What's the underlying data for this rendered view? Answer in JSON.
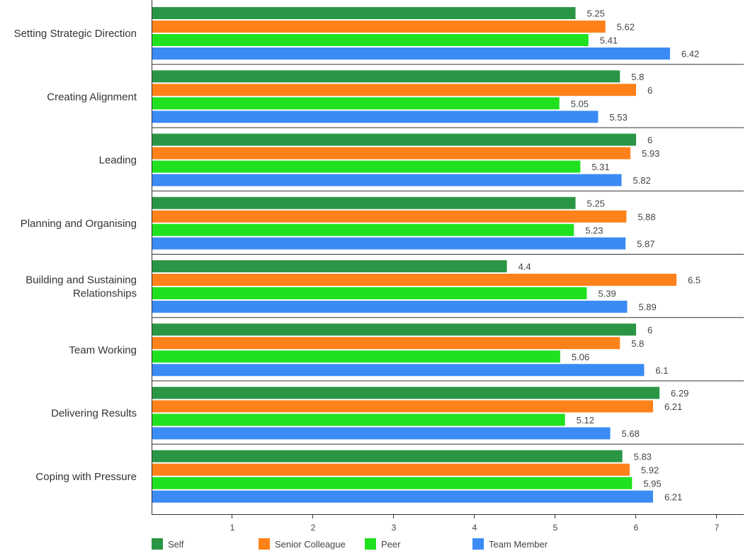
{
  "chart_data": {
    "type": "bar",
    "orientation": "horizontal",
    "categories": [
      "Setting Strategic Direction",
      "Creating Alignment",
      "Leading",
      "Planning and Organising",
      "Building and Sustaining Relationships",
      "Team Working",
      "Delivering Results",
      "Coping with Pressure"
    ],
    "category_lines": [
      [
        "Setting Strategic Direction"
      ],
      [
        "Creating Alignment"
      ],
      [
        "Leading"
      ],
      [
        "Planning and Organising"
      ],
      [
        "Building and Sustaining",
        "Relationships"
      ],
      [
        "Team Working"
      ],
      [
        "Delivering Results"
      ],
      [
        "Coping with Pressure"
      ]
    ],
    "series": [
      {
        "name": "Self",
        "color": "#2a9645",
        "values": [
          5.25,
          5.8,
          6,
          5.25,
          4.4,
          6,
          6.29,
          5.83
        ]
      },
      {
        "name": "Senior Colleague",
        "color": "#ff8119",
        "values": [
          5.62,
          6,
          5.93,
          5.88,
          6.5,
          5.8,
          6.21,
          5.92
        ]
      },
      {
        "name": "Peer",
        "color": "#1fe11f",
        "values": [
          5.41,
          5.05,
          5.31,
          5.23,
          5.39,
          5.06,
          5.12,
          5.95
        ]
      },
      {
        "name": "Team Member",
        "color": "#3b8bf5",
        "values": [
          6.42,
          5.53,
          5.82,
          5.87,
          5.89,
          6.1,
          5.68,
          6.21
        ]
      }
    ],
    "xlim": [
      0,
      7.3
    ],
    "x_ticks": [
      1,
      2,
      3,
      4,
      5,
      6,
      7
    ],
    "title": "",
    "xlabel": "",
    "ylabel": "",
    "grid": false,
    "legend": "bottom"
  }
}
